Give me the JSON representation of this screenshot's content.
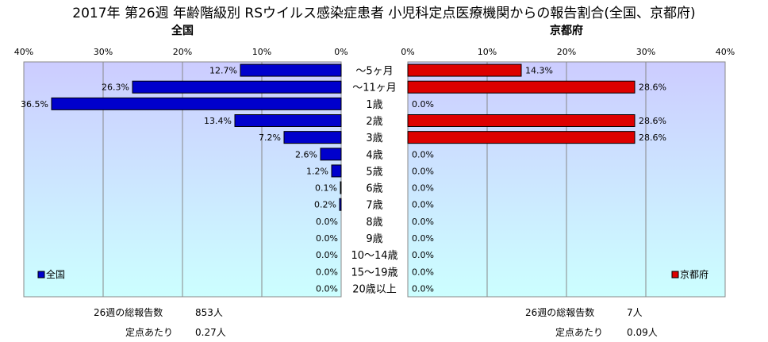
{
  "title": "2017年 第26週 年齢階級別 RSウイルス感染症患者 小児科定点医療機関からの報告割合(全国、京都府)",
  "chart_data": {
    "type": "bar",
    "categories": [
      "～5ヶ月",
      "～11ヶ月",
      "1歳",
      "2歳",
      "3歳",
      "4歳",
      "5歳",
      "6歳",
      "7歳",
      "8歳",
      "9歳",
      "10～14歳",
      "15～19歳",
      "20歳以上"
    ],
    "xlim": [
      0,
      40
    ],
    "tick_labels": [
      "0%",
      "10%",
      "20%",
      "30%",
      "40%"
    ],
    "grid": true,
    "series": [
      {
        "name": "全国",
        "panel_title": "全国",
        "color": "#0000cc",
        "values": [
          12.7,
          26.3,
          36.5,
          13.4,
          7.2,
          2.6,
          1.2,
          0.1,
          0.2,
          0.0,
          0.0,
          0.0,
          0.0,
          0.0
        ],
        "value_labels": [
          "12.7%",
          "26.3%",
          "36.5%",
          "13.4%",
          "7.2%",
          "2.6%",
          "1.2%",
          "0.1%",
          "0.2%",
          "0.0%",
          "0.0%",
          "0.0%",
          "0.0%",
          "0.0%"
        ],
        "direction": "left",
        "legend_position": "bottom-left"
      },
      {
        "name": "京都府",
        "panel_title": "京都府",
        "color": "#dd0000",
        "values": [
          14.3,
          28.6,
          0.0,
          28.6,
          28.6,
          0.0,
          0.0,
          0.0,
          0.0,
          0.0,
          0.0,
          0.0,
          0.0,
          0.0
        ],
        "value_labels": [
          "14.3%",
          "28.6%",
          "0.0%",
          "28.6%",
          "28.6%",
          "0.0%",
          "0.0%",
          "0.0%",
          "0.0%",
          "0.0%",
          "0.0%",
          "0.0%",
          "0.0%",
          "0.0%"
        ],
        "direction": "right",
        "legend_position": "bottom-right"
      }
    ]
  },
  "footer": {
    "national": {
      "reports_label": "26週の総報告数",
      "reports_value": "853人",
      "per_site_label": "定点あたり",
      "per_site_value": "0.27人"
    },
    "kyoto": {
      "reports_label": "26週の総報告数",
      "reports_value": "7人",
      "per_site_label": "定点あたり",
      "per_site_value": "0.09人"
    }
  },
  "colors": {
    "plot_gradient_top": "#ccccff",
    "plot_gradient_bottom": "#ccffff",
    "gridline": "#888888"
  }
}
